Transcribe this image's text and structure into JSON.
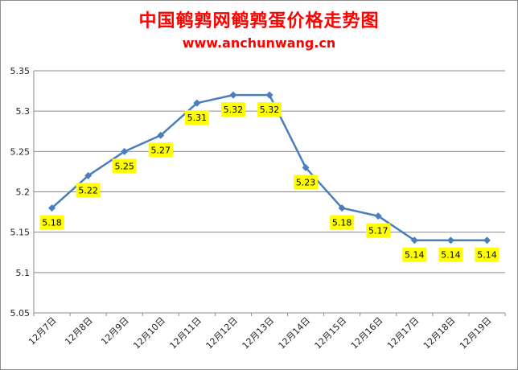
{
  "chart_data": {
    "type": "line",
    "title": "中国鹌鹑网鹌鹑蛋价格走势图",
    "subtitle": "www.anchunwang.cn",
    "categories": [
      "12月7日",
      "12月8日",
      "12月9日",
      "12月10日",
      "12月11日",
      "12月12日",
      "12月13日",
      "12月14日",
      "12月15日",
      "12月16日",
      "12月17日",
      "12月18日",
      "12月19日"
    ],
    "series": [
      {
        "values": [
          5.18,
          5.22,
          5.25,
          5.27,
          5.31,
          5.32,
          5.32,
          5.23,
          5.18,
          5.17,
          5.14,
          5.14,
          5.14
        ]
      }
    ],
    "data_labels": [
      "5.18",
      "5.22",
      "5.25",
      "5.27",
      "5.31",
      "5.32",
      "5.32",
      "5.23",
      "5.18",
      "5.17",
      "5.14",
      "5.14",
      "5.14"
    ],
    "ylim": [
      5.05,
      5.35
    ],
    "yticks": [
      "5.35",
      "5.3",
      "5.25",
      "5.2",
      "5.15",
      "5.1",
      "5.05"
    ],
    "grid": true,
    "colors": {
      "line": "#4a7ebb",
      "label_bg": "#ffff00",
      "title": "#ff0000",
      "grid": "#8c8c8c"
    }
  }
}
